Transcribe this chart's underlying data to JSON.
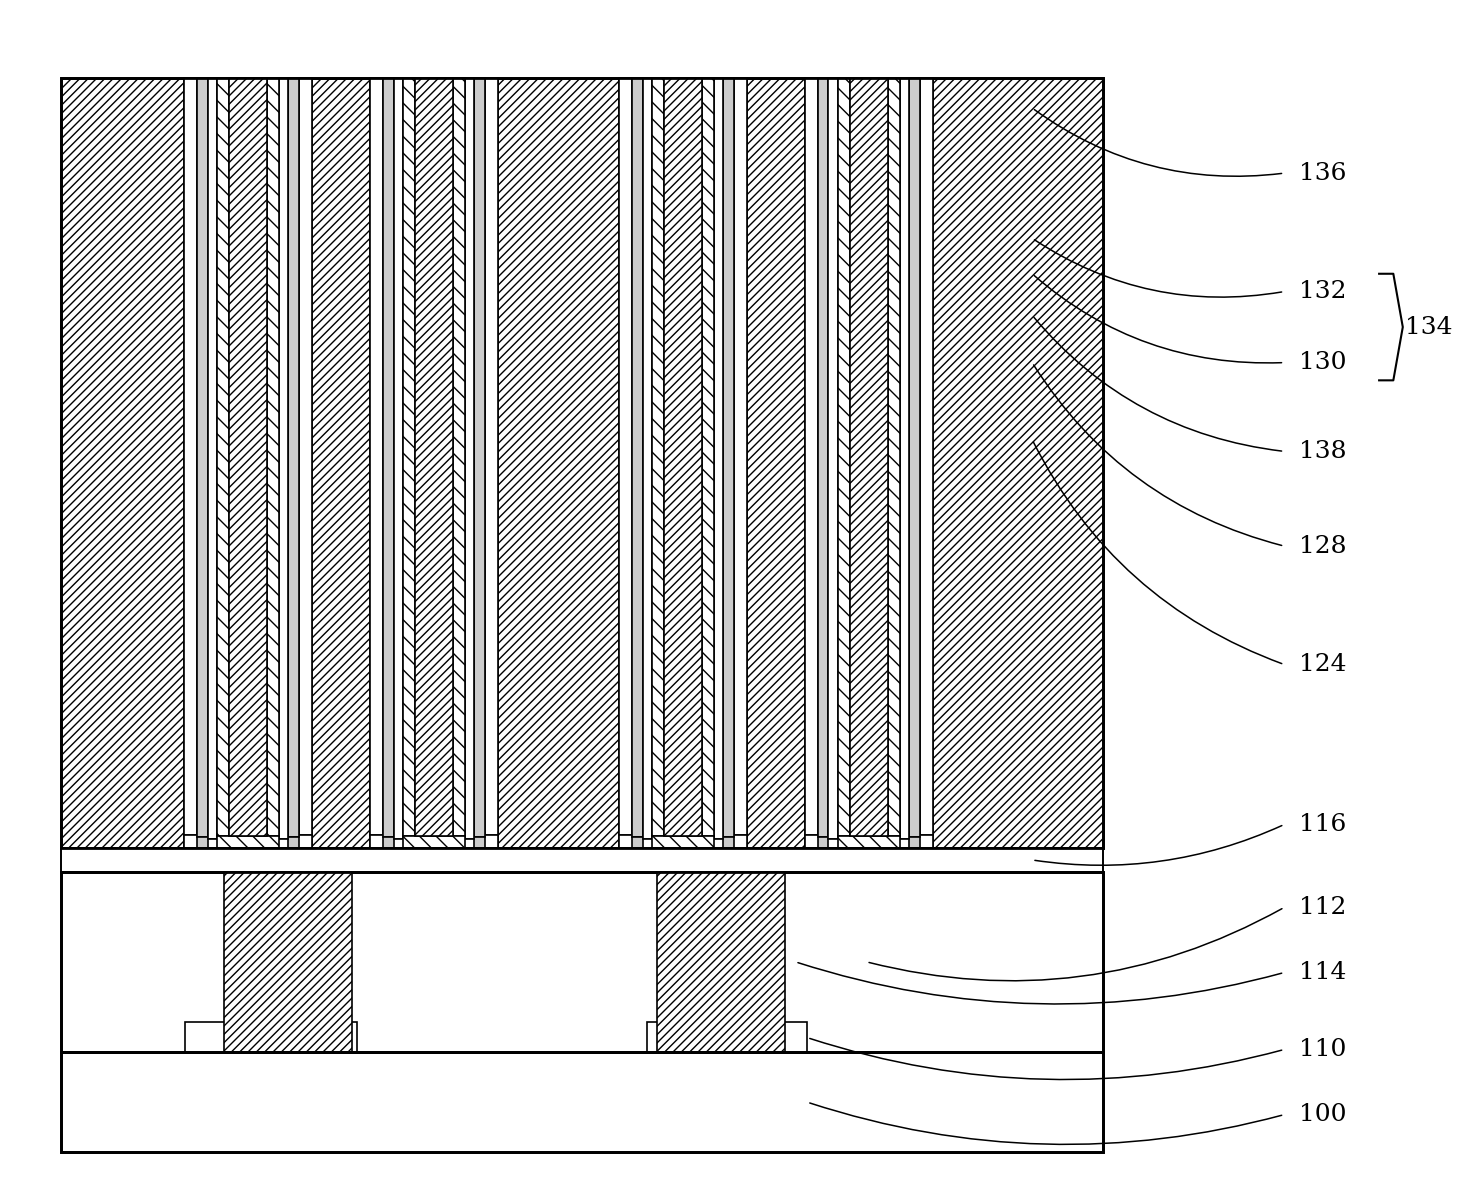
{
  "figure_width": 14.84,
  "figure_height": 11.87,
  "bg_color": "#ffffff",
  "line_color": "#000000",
  "border_lw": 2.0,
  "thin_lw": 1.2,
  "label_fs": 18
}
